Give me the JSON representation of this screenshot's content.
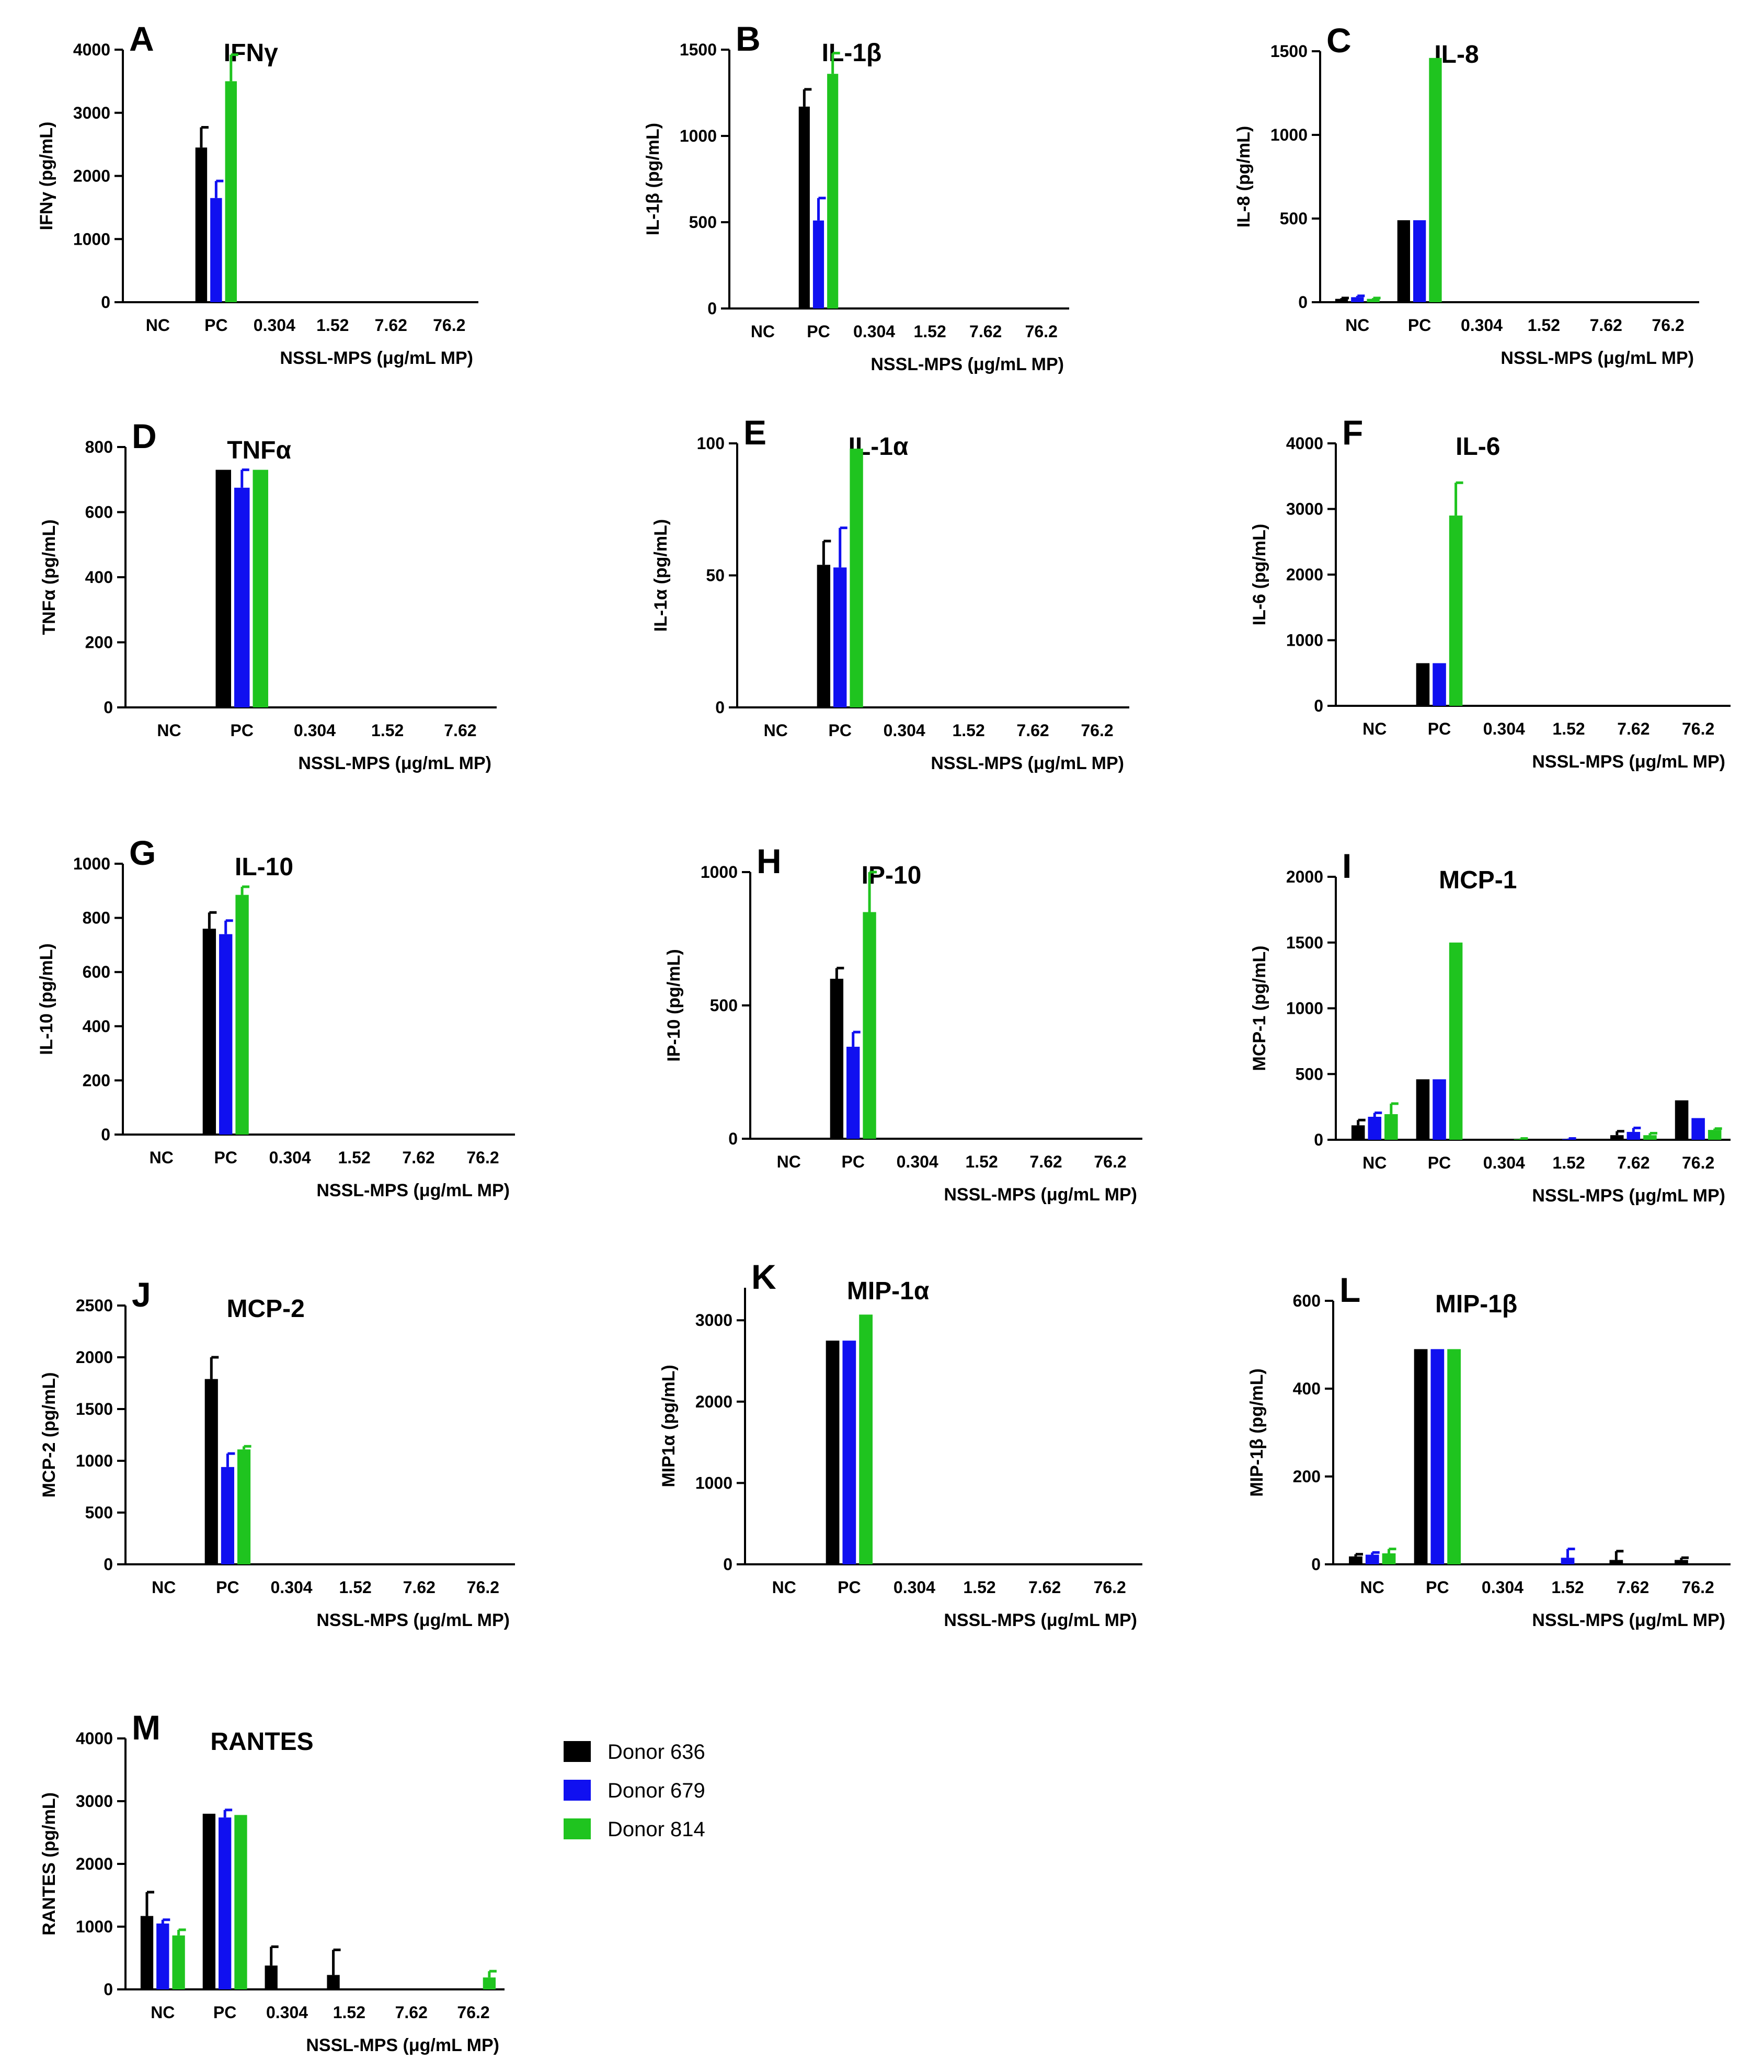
{
  "legend": {
    "items": [
      {
        "label": "Donor 636",
        "color": "#000000"
      },
      {
        "label": "Donor 679",
        "color": "#1010f0"
      },
      {
        "label": "Donor 814",
        "color": "#1fc41f"
      }
    ]
  },
  "chart_data": [
    {
      "type": "bar",
      "letter": "A",
      "title": "IFNγ",
      "ylabel": "IFNγ (pg/mL)",
      "xlabel": "NSSL-MPS (μg/mL MP)",
      "categories": [
        "NC",
        "PC",
        "0.304",
        "1.52",
        "7.62",
        "76.2"
      ],
      "ylim": [
        0,
        4000
      ],
      "yticks": [
        0,
        1000,
        2000,
        3000,
        4000
      ],
      "series": [
        {
          "name": "Donor 636",
          "values": [
            0,
            2450,
            0,
            0,
            0,
            0
          ],
          "errors": [
            0,
            320,
            0,
            0,
            0,
            0
          ]
        },
        {
          "name": "Donor 679",
          "values": [
            0,
            1650,
            0,
            0,
            0,
            0
          ],
          "errors": [
            0,
            270,
            0,
            0,
            0,
            0
          ]
        },
        {
          "name": "Donor 814",
          "values": [
            0,
            3500,
            0,
            0,
            0,
            0
          ],
          "errors": [
            0,
            420,
            0,
            0,
            0,
            0
          ]
        }
      ]
    },
    {
      "type": "bar",
      "letter": "B",
      "title": "IL-1β",
      "ylabel": "IL-1β (pg/mL)",
      "xlabel": "NSSL-MPS (μg/mL MP)",
      "categories": [
        "NC",
        "PC",
        "0.304",
        "1.52",
        "7.62",
        "76.2"
      ],
      "ylim": [
        0,
        1500
      ],
      "yticks": [
        0,
        500,
        1000,
        1500
      ],
      "series": [
        {
          "name": "Donor 636",
          "values": [
            0,
            1170,
            0,
            0,
            0,
            0
          ],
          "errors": [
            0,
            100,
            0,
            0,
            0,
            0
          ]
        },
        {
          "name": "Donor 679",
          "values": [
            0,
            510,
            0,
            0,
            0,
            0
          ],
          "errors": [
            0,
            130,
            0,
            0,
            0,
            0
          ]
        },
        {
          "name": "Donor 814",
          "values": [
            0,
            1360,
            0,
            0,
            0,
            0
          ],
          "errors": [
            0,
            120,
            0,
            0,
            0,
            0
          ]
        }
      ]
    },
    {
      "type": "bar",
      "letter": "C",
      "title": "IL-8",
      "ylabel": "IL-8 (pg/mL)",
      "xlabel": "NSSL-MPS (μg/mL MP)",
      "categories": [
        "NC",
        "PC",
        "0.304",
        "1.52",
        "7.62",
        "76.2"
      ],
      "ylim": [
        0,
        1500
      ],
      "yticks": [
        0,
        500,
        1000,
        1500
      ],
      "series": [
        {
          "name": "Donor 636",
          "values": [
            20,
            490,
            0,
            0,
            0,
            0
          ],
          "errors": [
            5,
            0,
            0,
            0,
            0,
            0
          ]
        },
        {
          "name": "Donor 679",
          "values": [
            30,
            490,
            0,
            0,
            0,
            0
          ],
          "errors": [
            8,
            0,
            0,
            0,
            0,
            0
          ]
        },
        {
          "name": "Donor 814",
          "values": [
            20,
            1460,
            0,
            0,
            0,
            0
          ],
          "errors": [
            5,
            0,
            0,
            0,
            0,
            0
          ]
        }
      ]
    },
    {
      "type": "bar",
      "letter": "D",
      "title": "TNFα",
      "ylabel": "TNFα (pg/mL)",
      "xlabel": "NSSL-MPS (μg/mL MP)",
      "categories": [
        "NC",
        "PC",
        "0.304",
        "1.52",
        "7.62"
      ],
      "ylim": [
        0,
        800
      ],
      "yticks": [
        0,
        200,
        400,
        600,
        800
      ],
      "series": [
        {
          "name": "Donor 636",
          "values": [
            0,
            730,
            0,
            0,
            0
          ],
          "errors": [
            0,
            0,
            0,
            0,
            0
          ]
        },
        {
          "name": "Donor 679",
          "values": [
            0,
            675,
            0,
            0,
            0
          ],
          "errors": [
            0,
            55,
            0,
            0,
            0
          ]
        },
        {
          "name": "Donor 814",
          "values": [
            0,
            730,
            0,
            0,
            0
          ],
          "errors": [
            0,
            0,
            0,
            0,
            0
          ]
        }
      ]
    },
    {
      "type": "bar",
      "letter": "E",
      "title": "IL-1α",
      "ylabel": "IL-1α (pg/mL)",
      "xlabel": "NSSL-MPS (μg/mL MP)",
      "categories": [
        "NC",
        "PC",
        "0.304",
        "1.52",
        "7.62",
        "76.2"
      ],
      "ylim": [
        0,
        100
      ],
      "yticks": [
        0,
        50,
        100
      ],
      "series": [
        {
          "name": "Donor 636",
          "values": [
            0,
            54,
            0,
            0,
            0,
            0
          ],
          "errors": [
            0,
            9,
            0,
            0,
            0,
            0
          ]
        },
        {
          "name": "Donor 679",
          "values": [
            0,
            53,
            0,
            0,
            0,
            0
          ],
          "errors": [
            0,
            15,
            0,
            0,
            0,
            0
          ]
        },
        {
          "name": "Donor 814",
          "values": [
            0,
            98,
            0,
            0,
            0,
            0
          ],
          "errors": [
            0,
            0,
            0,
            0,
            0,
            0
          ]
        }
      ]
    },
    {
      "type": "bar",
      "letter": "F",
      "title": "IL-6",
      "ylabel": "IL-6 (pg/mL)",
      "xlabel": "NSSL-MPS (μg/mL MP)",
      "categories": [
        "NC",
        "PC",
        "0.304",
        "1.52",
        "7.62",
        "76.2"
      ],
      "ylim": [
        0,
        4000
      ],
      "yticks": [
        0,
        1000,
        2000,
        3000,
        4000
      ],
      "series": [
        {
          "name": "Donor 636",
          "values": [
            0,
            650,
            0,
            0,
            0,
            0
          ],
          "errors": [
            0,
            0,
            0,
            0,
            0,
            0
          ]
        },
        {
          "name": "Donor 679",
          "values": [
            0,
            650,
            0,
            0,
            0,
            0
          ],
          "errors": [
            0,
            0,
            0,
            0,
            0,
            0
          ]
        },
        {
          "name": "Donor 814",
          "values": [
            0,
            2900,
            0,
            0,
            0,
            0
          ],
          "errors": [
            0,
            500,
            0,
            0,
            0,
            0
          ]
        }
      ]
    },
    {
      "type": "bar",
      "letter": "G",
      "title": "IL-10",
      "ylabel": "IL-10 (pg/mL)",
      "xlabel": "NSSL-MPS (μg/mL MP)",
      "categories": [
        "NC",
        "PC",
        "0.304",
        "1.52",
        "7.62",
        "76.2"
      ],
      "ylim": [
        0,
        1000
      ],
      "yticks": [
        0,
        200,
        400,
        600,
        800,
        1000
      ],
      "series": [
        {
          "name": "Donor 636",
          "values": [
            0,
            760,
            0,
            0,
            0,
            0
          ],
          "errors": [
            0,
            60,
            0,
            0,
            0,
            0
          ]
        },
        {
          "name": "Donor 679",
          "values": [
            0,
            740,
            0,
            0,
            0,
            0
          ],
          "errors": [
            0,
            50,
            0,
            0,
            0,
            0
          ]
        },
        {
          "name": "Donor 814",
          "values": [
            0,
            885,
            0,
            0,
            0,
            0
          ],
          "errors": [
            0,
            30,
            0,
            0,
            0,
            0
          ]
        }
      ]
    },
    {
      "type": "bar",
      "letter": "H",
      "title": "IP-10",
      "ylabel": "IP-10 (pg/mL)",
      "xlabel": "NSSL-MPS (μg/mL MP)",
      "categories": [
        "NC",
        "PC",
        "0.304",
        "1.52",
        "7.62",
        "76.2"
      ],
      "ylim": [
        0,
        1000
      ],
      "yticks": [
        0,
        500,
        1000
      ],
      "series": [
        {
          "name": "Donor 636",
          "values": [
            0,
            600,
            0,
            0,
            0,
            0
          ],
          "errors": [
            0,
            40,
            0,
            0,
            0,
            0
          ]
        },
        {
          "name": "Donor 679",
          "values": [
            0,
            345,
            0,
            0,
            0,
            0
          ],
          "errors": [
            0,
            55,
            0,
            0,
            0,
            0
          ]
        },
        {
          "name": "Donor 814",
          "values": [
            0,
            850,
            0,
            0,
            0,
            0
          ],
          "errors": [
            0,
            150,
            0,
            0,
            0,
            0
          ]
        }
      ]
    },
    {
      "type": "bar",
      "letter": "I",
      "title": "MCP-1",
      "ylabel": "MCP-1 (pg/mL)",
      "xlabel": "NSSL-MPS (μg/mL MP)",
      "categories": [
        "NC",
        "PC",
        "0.304",
        "1.52",
        "7.62",
        "76.2"
      ],
      "ylim": [
        0,
        2000
      ],
      "yticks": [
        0,
        500,
        1000,
        1500,
        2000
      ],
      "series": [
        {
          "name": "Donor 636",
          "values": [
            110,
            460,
            0,
            0,
            35,
            300
          ],
          "errors": [
            40,
            0,
            0,
            0,
            30,
            0
          ]
        },
        {
          "name": "Donor 679",
          "values": [
            175,
            460,
            0,
            5,
            60,
            165
          ],
          "errors": [
            30,
            0,
            0,
            5,
            30,
            0
          ]
        },
        {
          "name": "Donor 814",
          "values": [
            195,
            1500,
            5,
            0,
            35,
            75
          ],
          "errors": [
            80,
            0,
            5,
            0,
            15,
            10
          ]
        }
      ]
    },
    {
      "type": "bar",
      "letter": "J",
      "title": "MCP-2",
      "ylabel": "MCP-2 (pg/mL)",
      "xlabel": "NSSL-MPS (μg/mL MP)",
      "categories": [
        "NC",
        "PC",
        "0.304",
        "1.52",
        "7.62",
        "76.2"
      ],
      "ylim": [
        0,
        2500
      ],
      "yticks": [
        0,
        500,
        1000,
        1500,
        2000,
        2500
      ],
      "series": [
        {
          "name": "Donor 636",
          "values": [
            0,
            1790,
            0,
            0,
            0,
            0
          ],
          "errors": [
            0,
            210,
            0,
            0,
            0,
            0
          ]
        },
        {
          "name": "Donor 679",
          "values": [
            0,
            940,
            0,
            0,
            0,
            0
          ],
          "errors": [
            0,
            130,
            0,
            0,
            0,
            0
          ]
        },
        {
          "name": "Donor 814",
          "values": [
            0,
            1110,
            0,
            0,
            0,
            0
          ],
          "errors": [
            0,
            30,
            0,
            0,
            0,
            0
          ]
        }
      ]
    },
    {
      "type": "bar",
      "letter": "K",
      "title": "MIP-1α",
      "ylabel": "MIP1α (pg/mL)",
      "xlabel": "NSSL-MPS (μg/mL MP)",
      "categories": [
        "NC",
        "PC",
        "0.304",
        "1.52",
        "7.62",
        "76.2"
      ],
      "ylim": [
        0,
        3400
      ],
      "yticks": [
        0,
        1000,
        2000,
        3000
      ],
      "series": [
        {
          "name": "Donor 636",
          "values": [
            0,
            2750,
            0,
            0,
            0,
            0
          ],
          "errors": [
            0,
            0,
            0,
            0,
            0,
            0
          ]
        },
        {
          "name": "Donor 679",
          "values": [
            0,
            2750,
            0,
            0,
            0,
            0
          ],
          "errors": [
            0,
            0,
            0,
            0,
            0,
            0
          ]
        },
        {
          "name": "Donor 814",
          "values": [
            0,
            3070,
            0,
            0,
            0,
            0
          ],
          "errors": [
            0,
            0,
            0,
            0,
            0,
            0
          ]
        }
      ]
    },
    {
      "type": "bar",
      "letter": "L",
      "title": "MIP-1β",
      "ylabel": "MIP-1β (pg/mL)",
      "xlabel": "NSSL-MPS (μg/mL MP)",
      "categories": [
        "NC",
        "PC",
        "0.304",
        "1.52",
        "7.62",
        "76.2"
      ],
      "ylim": [
        0,
        600
      ],
      "yticks": [
        0,
        200,
        400,
        600
      ],
      "series": [
        {
          "name": "Donor 636",
          "values": [
            18,
            490,
            0,
            0,
            10,
            10
          ],
          "errors": [
            5,
            0,
            0,
            0,
            20,
            5
          ]
        },
        {
          "name": "Donor 679",
          "values": [
            22,
            490,
            0,
            15,
            0,
            0
          ],
          "errors": [
            5,
            0,
            0,
            20,
            0,
            0
          ]
        },
        {
          "name": "Donor 814",
          "values": [
            25,
            490,
            0,
            0,
            0,
            0
          ],
          "errors": [
            10,
            0,
            0,
            0,
            0,
            0
          ]
        }
      ]
    },
    {
      "type": "bar",
      "letter": "M",
      "title": "RANTES",
      "ylabel": "RANTES (pg/mL)",
      "xlabel": "NSSL-MPS (μg/mL MP)",
      "categories": [
        "NC",
        "PC",
        "0.304",
        "1.52",
        "7.62",
        "76.2"
      ],
      "ylim": [
        0,
        4000
      ],
      "yticks": [
        0,
        1000,
        2000,
        3000,
        4000
      ],
      "series": [
        {
          "name": "Donor 636",
          "values": [
            1170,
            2800,
            380,
            230,
            0,
            0
          ],
          "errors": [
            380,
            0,
            300,
            400,
            0,
            0
          ]
        },
        {
          "name": "Donor 679",
          "values": [
            1050,
            2740,
            0,
            0,
            0,
            0
          ],
          "errors": [
            60,
            120,
            0,
            0,
            0,
            0
          ]
        },
        {
          "name": "Donor 814",
          "values": [
            860,
            2780,
            0,
            0,
            0,
            190
          ],
          "errors": [
            90,
            0,
            0,
            0,
            0,
            100
          ]
        }
      ]
    }
  ]
}
